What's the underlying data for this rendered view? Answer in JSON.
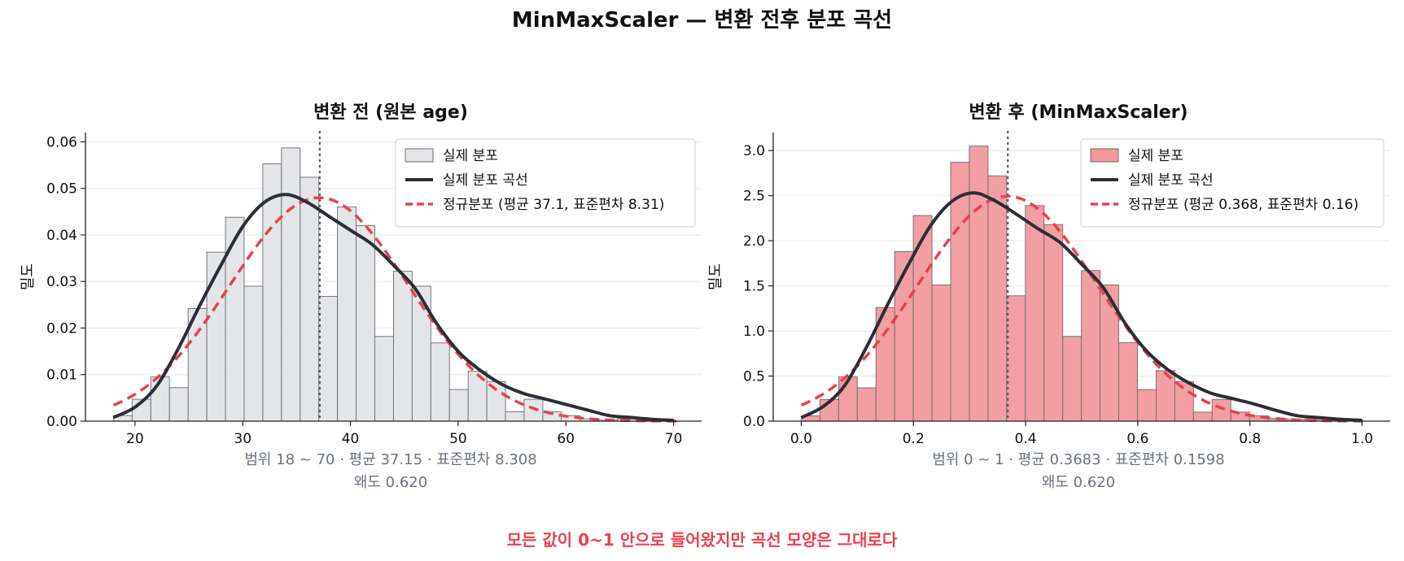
{
  "figure": {
    "title": "MinMaxScaler — 변환 전후 분포 곡선",
    "footer": "모든 값이 0~1 안으로 들어왔지만 곡선 모양은 그대로다"
  },
  "colors": {
    "hist_before": "#e2e4e8",
    "hist_after": "#f1999e",
    "hist_edge": "#6b6b6b",
    "kde": "#2b2e36",
    "normal": "#e8414e",
    "mean_line": "#555555",
    "stats_text": "#6b7280",
    "footer_text": "#e8414e"
  },
  "chart_data": [
    {
      "type": "histogram",
      "title": "변환 전 (원본 age)",
      "xlabel": "",
      "ylabel": "밀도",
      "xlim": [
        15.4,
        72.6
      ],
      "ylim": [
        0,
        0.062
      ],
      "xticks": [
        20,
        30,
        40,
        50,
        60,
        70
      ],
      "yticks": [
        0.0,
        0.01,
        0.02,
        0.03,
        0.04,
        0.05,
        0.06
      ],
      "ytick_decimals": 2,
      "grid_y": true,
      "legend_position": "top-right",
      "bins": {
        "start": 18,
        "width": 1.733
      },
      "values": [
        0.0012,
        0.0047,
        0.0095,
        0.0072,
        0.0242,
        0.0363,
        0.0438,
        0.029,
        0.0553,
        0.0587,
        0.0524,
        0.0268,
        0.046,
        0.042,
        0.0182,
        0.0322,
        0.029,
        0.0168,
        0.0068,
        0.0107,
        0.0085,
        0.002,
        0.0047,
        0.002,
        0.0012,
        0.0005,
        0.0002,
        0.0005,
        0.0002,
        0.0003
      ],
      "mean": 37.15,
      "series": [
        {
          "name": "실제 분포",
          "kind": "hist"
        },
        {
          "name": "실제 분포 곡선",
          "kind": "kde",
          "x": [
            18,
            20,
            22,
            24,
            26,
            28,
            30,
            32,
            34,
            36,
            38,
            40,
            42,
            44,
            46,
            48,
            50,
            52,
            54,
            56,
            58,
            60,
            62,
            64,
            66,
            68,
            70
          ],
          "y": [
            0.0008,
            0.003,
            0.0075,
            0.0155,
            0.0248,
            0.0336,
            0.0418,
            0.047,
            0.0487,
            0.047,
            0.044,
            0.041,
            0.038,
            0.0335,
            0.0285,
            0.021,
            0.015,
            0.011,
            0.008,
            0.006,
            0.0048,
            0.0036,
            0.0024,
            0.0012,
            0.0008,
            0.0004,
            0.0002
          ]
        },
        {
          "name": "정규분포 (평균 37.1, 표준편차 8.31)",
          "kind": "normal",
          "mu": 37.1,
          "sigma": 8.31
        }
      ],
      "stats": "범위 18 ~ 70  ·  평균 37.15  ·  표준편차 8.308",
      "skew": "왜도 0.620"
    },
    {
      "type": "histogram",
      "title": "변환 후 (MinMaxScaler)",
      "xlabel": "",
      "ylabel": "밀도",
      "xlim": [
        -0.05,
        1.05
      ],
      "ylim": [
        0,
        3.2
      ],
      "xticks": [
        0.0,
        0.2,
        0.4,
        0.6,
        0.8,
        1.0
      ],
      "yticks": [
        0.0,
        0.5,
        1.0,
        1.5,
        2.0,
        2.5,
        3.0
      ],
      "ytick_decimals": 1,
      "grid_y": true,
      "legend_position": "top-right",
      "bins": {
        "start": 0,
        "width": 0.0333
      },
      "values": [
        0.06,
        0.24,
        0.49,
        0.37,
        1.26,
        1.88,
        2.28,
        1.51,
        2.87,
        3.05,
        2.72,
        1.39,
        2.39,
        2.18,
        0.94,
        1.67,
        1.51,
        0.87,
        0.35,
        0.56,
        0.44,
        0.1,
        0.24,
        0.1,
        0.06,
        0.03,
        0.02,
        0.04,
        0.02,
        0.02
      ],
      "mean": 0.3683,
      "series": [
        {
          "name": "실제 분포",
          "kind": "hist"
        },
        {
          "name": "실제 분포 곡선",
          "kind": "kde",
          "x": [
            0,
            0.0385,
            0.0769,
            0.1154,
            0.1538,
            0.1923,
            0.2308,
            0.2692,
            0.3077,
            0.3462,
            0.3846,
            0.4231,
            0.4615,
            0.5,
            0.5385,
            0.5769,
            0.6154,
            0.6538,
            0.6923,
            0.7308,
            0.7692,
            0.8077,
            0.8462,
            0.8846,
            0.9231,
            0.9615,
            1.0
          ],
          "y": [
            0.04,
            0.16,
            0.39,
            0.81,
            1.29,
            1.75,
            2.17,
            2.44,
            2.53,
            2.44,
            2.29,
            2.13,
            1.98,
            1.74,
            1.48,
            1.09,
            0.78,
            0.57,
            0.42,
            0.31,
            0.25,
            0.19,
            0.12,
            0.06,
            0.04,
            0.02,
            0.01
          ]
        },
        {
          "name": "정규분포 (평균 0.368, 표준편차 0.16)",
          "kind": "normal",
          "mu": 0.368,
          "sigma": 0.16
        }
      ],
      "stats": "범위 0 ~ 1  ·  평균 0.3683  ·  표준편차 0.1598",
      "skew": "왜도 0.620"
    }
  ]
}
